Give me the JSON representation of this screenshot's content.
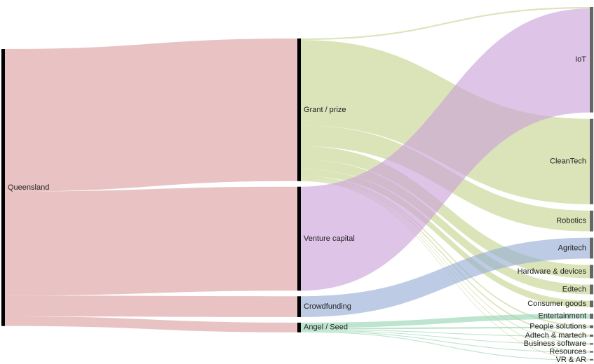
{
  "chart_data": {
    "type": "sankey",
    "title": "",
    "columns": [
      [
        "Queensland"
      ],
      [
        "Grant / prize",
        "Venture capital",
        "Crowdfunding",
        "Angel / Seed"
      ],
      [
        "IoT",
        "CleanTech",
        "Robotics",
        "Agritech",
        "Hardware & devices",
        "Edtech",
        "Consumer goods",
        "Entertainment",
        "People solutions",
        "Adtech & martech",
        "Business software",
        "Resources",
        "VR & AR"
      ]
    ],
    "nodes": [
      {
        "id": "Queensland",
        "label": "Queensland"
      },
      {
        "id": "Grant / prize",
        "label": "Grant / prize"
      },
      {
        "id": "Venture capital",
        "label": "Venture capital"
      },
      {
        "id": "Crowdfunding",
        "label": "Crowdfunding"
      },
      {
        "id": "Angel / Seed",
        "label": "Angel / Seed"
      },
      {
        "id": "IoT",
        "label": "IoT"
      },
      {
        "id": "CleanTech",
        "label": "CleanTech"
      },
      {
        "id": "Robotics",
        "label": "Robotics"
      },
      {
        "id": "Agritech",
        "label": "Agritech"
      },
      {
        "id": "Hardware & devices",
        "label": "Hardware & devices"
      },
      {
        "id": "Edtech",
        "label": "Edtech"
      },
      {
        "id": "Consumer goods",
        "label": "Consumer goods"
      },
      {
        "id": "Entertainment",
        "label": "Entertainment"
      },
      {
        "id": "People solutions",
        "label": "People solutions"
      },
      {
        "id": "Adtech & martech",
        "label": "Adtech & martech"
      },
      {
        "id": "Business software",
        "label": "Business software"
      },
      {
        "id": "Resources",
        "label": "Resources"
      },
      {
        "id": "VR & AR",
        "label": "VR & AR"
      }
    ],
    "links": [
      {
        "source": "Queensland",
        "target": "Grant / prize",
        "value": 192
      },
      {
        "source": "Queensland",
        "target": "Venture capital",
        "value": 140
      },
      {
        "source": "Queensland",
        "target": "Crowdfunding",
        "value": 28
      },
      {
        "source": "Queensland",
        "target": "Angel / Seed",
        "value": 13
      },
      {
        "source": "Grant / prize",
        "target": "IoT",
        "value": 2
      },
      {
        "source": "Grant / prize",
        "target": "CleanTech",
        "value": 115
      },
      {
        "source": "Grant / prize",
        "target": "Robotics",
        "value": 28
      },
      {
        "source": "Grant / prize",
        "target": "Hardware & devices",
        "value": 18
      },
      {
        "source": "Grant / prize",
        "target": "Edtech",
        "value": 13
      },
      {
        "source": "Grant / prize",
        "target": "Consumer goods",
        "value": 9
      },
      {
        "source": "Grant / prize",
        "target": "People solutions",
        "value": 2
      },
      {
        "source": "Grant / prize",
        "target": "Adtech & martech",
        "value": 2
      },
      {
        "source": "Grant / prize",
        "target": "Business software",
        "value": 1
      },
      {
        "source": "Grant / prize",
        "target": "Resources",
        "value": 1
      },
      {
        "source": "Grant / prize",
        "target": "VR & AR",
        "value": 1
      },
      {
        "source": "Venture capital",
        "target": "IoT",
        "value": 140
      },
      {
        "source": "Crowdfunding",
        "target": "Agritech",
        "value": 28
      },
      {
        "source": "Angel / Seed",
        "target": "Entertainment",
        "value": 7
      },
      {
        "source": "Angel / Seed",
        "target": "People solutions",
        "value": 2
      },
      {
        "source": "Angel / Seed",
        "target": "Adtech & martech",
        "value": 1
      },
      {
        "source": "Angel / Seed",
        "target": "Business software",
        "value": 1
      },
      {
        "source": "Angel / Seed",
        "target": "Resources",
        "value": 1
      },
      {
        "source": "Angel / Seed",
        "target": "VR & AR",
        "value": 1
      }
    ],
    "colors": {
      "Queensland": "#dc9e9e",
      "Grant / prize": "#c5d48e",
      "Venture capital": "#c9a0d9",
      "Crowdfunding": "#95acd4",
      "Angel / Seed": "#94d4b0"
    },
    "link_opacity": 0.62,
    "grid": false,
    "legend": "none"
  }
}
